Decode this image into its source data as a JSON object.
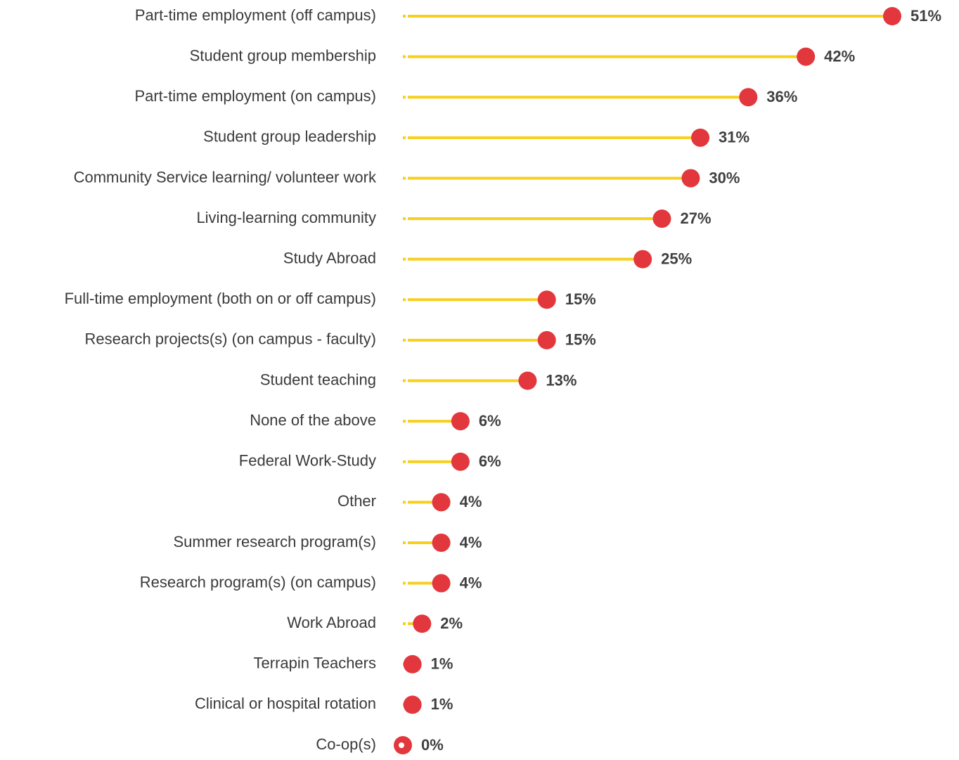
{
  "chart_data": {
    "type": "lollipop",
    "categories": [
      "Part-time employment (off campus)",
      "Student group membership",
      "Part-time employment (on campus)",
      "Student group leadership",
      "Community Service learning/ volunteer work",
      "Living-learning community",
      "Study Abroad",
      "Full-time employment (both on or off campus)",
      "Research projects(s) (on campus - faculty)",
      "Student teaching",
      "None of the above",
      "Federal Work-Study",
      "Other",
      "Summer research program(s)",
      "Research program(s) (on campus)",
      "Work Abroad",
      "Terrapin Teachers",
      "Clinical or hospital rotation",
      "Co-op(s)"
    ],
    "values": [
      51,
      42,
      36,
      31,
      30,
      27,
      25,
      15,
      15,
      13,
      6,
      6,
      4,
      4,
      4,
      2,
      1,
      1,
      0
    ],
    "value_labels": [
      "51%",
      "42%",
      "36%",
      "31%",
      "30%",
      "27%",
      "25%",
      "15%",
      "15%",
      "13%",
      "6%",
      "6%",
      "4%",
      "4%",
      "4%",
      "2%",
      "1%",
      "1%",
      "0%"
    ],
    "line_color": "#f7cf1d",
    "color": "#e2373d"
  }
}
